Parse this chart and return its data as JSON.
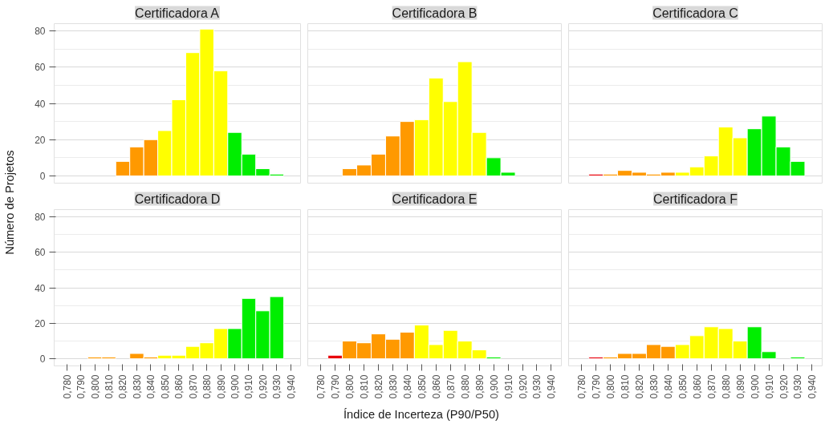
{
  "chart_data": [
    {
      "type": "histogram",
      "title": "Certificadora A",
      "ylabel": "Número de Projetos",
      "bins": [
        0.785,
        0.795,
        0.805,
        0.815,
        0.825,
        0.835,
        0.845,
        0.855,
        0.865,
        0.875,
        0.885,
        0.895,
        0.905,
        0.915,
        0.925,
        0.935
      ],
      "values": [
        0,
        0,
        0,
        8,
        16,
        20,
        25,
        42,
        68,
        81,
        58,
        24,
        12,
        4,
        1
      ],
      "colors": [
        "#e8000b",
        "#ff9900",
        "#ff9900",
        "#ff9900",
        "#ff9900",
        "#ff9900",
        "#ffff00",
        "#ffff00",
        "#ffff00",
        "#ffff00",
        "#ffff00",
        "#00ee00",
        "#00ee00",
        "#00ee00",
        "#00ee00"
      ],
      "xlim": [
        0.771,
        0.947
      ],
      "ylim": [
        -4,
        84
      ],
      "yticks": [
        0,
        20,
        40,
        60,
        80
      ],
      "grid": "y",
      "tick_labels": "y"
    },
    {
      "type": "histogram",
      "title": "Certificadora B",
      "bins": [
        0.785,
        0.795,
        0.805,
        0.815,
        0.825,
        0.835,
        0.845,
        0.855,
        0.865,
        0.875,
        0.885,
        0.895,
        0.905,
        0.915,
        0.925,
        0.935
      ],
      "values": [
        0,
        4,
        6,
        12,
        22,
        30,
        31,
        54,
        41,
        63,
        24,
        10,
        2,
        0,
        0
      ],
      "colors": [
        "#e8000b",
        "#ff9900",
        "#ff9900",
        "#ff9900",
        "#ff9900",
        "#ff9900",
        "#ffff00",
        "#ffff00",
        "#ffff00",
        "#ffff00",
        "#ffff00",
        "#00ee00",
        "#00ee00",
        "#00ee00",
        "#00ee00"
      ],
      "xlim": [
        0.771,
        0.947
      ],
      "ylim": [
        -4,
        84
      ],
      "yticks": [
        0,
        20,
        40,
        60,
        80
      ],
      "grid": "y",
      "tick_labels": false
    },
    {
      "type": "histogram",
      "title": "Certificadora C",
      "bins": [
        0.785,
        0.795,
        0.805,
        0.815,
        0.825,
        0.835,
        0.845,
        0.855,
        0.865,
        0.875,
        0.885,
        0.895,
        0.905,
        0.915,
        0.925,
        0.935
      ],
      "values": [
        1,
        1,
        3,
        2,
        1,
        2,
        2,
        5,
        11,
        27,
        21,
        26,
        33,
        16,
        8
      ],
      "colors": [
        "#e8000b",
        "#ff9900",
        "#ff9900",
        "#ff9900",
        "#ff9900",
        "#ff9900",
        "#ffff00",
        "#ffff00",
        "#ffff00",
        "#ffff00",
        "#ffff00",
        "#00ee00",
        "#00ee00",
        "#00ee00",
        "#00ee00"
      ],
      "xlim": [
        0.771,
        0.947
      ],
      "ylim": [
        -4,
        84
      ],
      "yticks": [
        0,
        20,
        40,
        60,
        80
      ],
      "grid": "y",
      "tick_labels": false
    },
    {
      "type": "histogram",
      "title": "Certificadora D",
      "bins": [
        0.785,
        0.795,
        0.805,
        0.815,
        0.825,
        0.835,
        0.845,
        0.855,
        0.865,
        0.875,
        0.885,
        0.895,
        0.905,
        0.915,
        0.925,
        0.935
      ],
      "values": [
        0,
        1,
        1,
        0,
        3,
        1,
        2,
        2,
        7,
        9,
        17,
        17,
        34,
        27,
        35
      ],
      "colors": [
        "#e8000b",
        "#ff9900",
        "#ff9900",
        "#ff9900",
        "#ff9900",
        "#ff9900",
        "#ffff00",
        "#ffff00",
        "#ffff00",
        "#ffff00",
        "#ffff00",
        "#00ee00",
        "#00ee00",
        "#00ee00",
        "#00ee00"
      ],
      "xlim": [
        0.771,
        0.947
      ],
      "xticks": [
        {
          "value": 0.78,
          "label": "0,780"
        },
        {
          "value": 0.79,
          "label": "0,790"
        },
        {
          "value": 0.8,
          "label": "0,800"
        },
        {
          "value": 0.81,
          "label": "0,810"
        },
        {
          "value": 0.82,
          "label": "0,820"
        },
        {
          "value": 0.83,
          "label": "0,830"
        },
        {
          "value": 0.84,
          "label": "0,840"
        },
        {
          "value": 0.85,
          "label": "0,850"
        },
        {
          "value": 0.86,
          "label": "0,860"
        },
        {
          "value": 0.87,
          "label": "0,870"
        },
        {
          "value": 0.88,
          "label": "0,880"
        },
        {
          "value": 0.89,
          "label": "0,890"
        },
        {
          "value": 0.9,
          "label": "0,900"
        },
        {
          "value": 0.91,
          "label": "0,910"
        },
        {
          "value": 0.92,
          "label": "0,920"
        },
        {
          "value": 0.93,
          "label": "0,930"
        },
        {
          "value": 0.94,
          "label": "0,940"
        }
      ],
      "ylim": [
        -4,
        84
      ],
      "yticks": [
        0,
        20,
        40,
        60,
        80
      ],
      "grid": "y"
    },
    {
      "type": "histogram",
      "title": "Certificadora E",
      "xlabel": "Índice de Incerteza (P90/P50)",
      "bins": [
        0.785,
        0.795,
        0.805,
        0.815,
        0.825,
        0.835,
        0.845,
        0.855,
        0.865,
        0.875,
        0.885,
        0.895,
        0.905,
        0.915,
        0.925,
        0.935
      ],
      "values": [
        2,
        10,
        9,
        14,
        11,
        15,
        19,
        8,
        16,
        10,
        5,
        1,
        0,
        0,
        0
      ],
      "colors": [
        "#e8000b",
        "#ff9900",
        "#ff9900",
        "#ff9900",
        "#ff9900",
        "#ff9900",
        "#ffff00",
        "#ffff00",
        "#ffff00",
        "#ffff00",
        "#ffff00",
        "#00ee00",
        "#00ee00",
        "#00ee00",
        "#00ee00"
      ],
      "xlim": [
        0.771,
        0.947
      ],
      "xticks": [
        {
          "value": 0.78,
          "label": "0,780"
        },
        {
          "value": 0.79,
          "label": "0,790"
        },
        {
          "value": 0.8,
          "label": "0,800"
        },
        {
          "value": 0.81,
          "label": "0,810"
        },
        {
          "value": 0.82,
          "label": "0,820"
        },
        {
          "value": 0.83,
          "label": "0,830"
        },
        {
          "value": 0.84,
          "label": "0,840"
        },
        {
          "value": 0.85,
          "label": "0,850"
        },
        {
          "value": 0.86,
          "label": "0,860"
        },
        {
          "value": 0.87,
          "label": "0,870"
        },
        {
          "value": 0.88,
          "label": "0,880"
        },
        {
          "value": 0.89,
          "label": "0,890"
        },
        {
          "value": 0.9,
          "label": "0,900"
        },
        {
          "value": 0.91,
          "label": "0,910"
        },
        {
          "value": 0.92,
          "label": "0,920"
        },
        {
          "value": 0.93,
          "label": "0,930"
        },
        {
          "value": 0.94,
          "label": "0,940"
        }
      ],
      "ylim": [
        -4,
        84
      ],
      "yticks": [
        0,
        20,
        40,
        60,
        80
      ],
      "grid": "y",
      "tick_labels": "x"
    },
    {
      "type": "histogram",
      "title": "Certificadora F",
      "bins": [
        0.785,
        0.795,
        0.805,
        0.815,
        0.825,
        0.835,
        0.845,
        0.855,
        0.865,
        0.875,
        0.885,
        0.895,
        0.905,
        0.915,
        0.925,
        0.935
      ],
      "values": [
        1,
        1,
        3,
        3,
        8,
        7,
        8,
        13,
        18,
        17,
        10,
        18,
        4,
        0,
        1
      ],
      "colors": [
        "#e8000b",
        "#ff9900",
        "#ff9900",
        "#ff9900",
        "#ff9900",
        "#ff9900",
        "#ffff00",
        "#ffff00",
        "#ffff00",
        "#ffff00",
        "#ffff00",
        "#00ee00",
        "#00ee00",
        "#00ee00",
        "#00ee00"
      ],
      "xlim": [
        0.771,
        0.947
      ],
      "xticks": [
        {
          "value": 0.78,
          "label": "0,780"
        },
        {
          "value": 0.79,
          "label": "0,790"
        },
        {
          "value": 0.8,
          "label": "0,800"
        },
        {
          "value": 0.81,
          "label": "0,810"
        },
        {
          "value": 0.82,
          "label": "0,820"
        },
        {
          "value": 0.83,
          "label": "0,830"
        },
        {
          "value": 0.84,
          "label": "0,840"
        },
        {
          "value": 0.85,
          "label": "0,850"
        },
        {
          "value": 0.86,
          "label": "0,860"
        },
        {
          "value": 0.87,
          "label": "0,870"
        },
        {
          "value": 0.88,
          "label": "0,880"
        },
        {
          "value": 0.89,
          "label": "0,890"
        },
        {
          "value": 0.9,
          "label": "0,900"
        },
        {
          "value": 0.91,
          "label": "0,910"
        },
        {
          "value": 0.92,
          "label": "0,920"
        },
        {
          "value": 0.93,
          "label": "0,930"
        },
        {
          "value": 0.94,
          "label": "0,940"
        }
      ],
      "ylim": [
        -4,
        84
      ],
      "yticks": [
        0,
        20,
        40,
        60,
        80
      ],
      "grid": "y",
      "tick_labels": "x"
    }
  ]
}
